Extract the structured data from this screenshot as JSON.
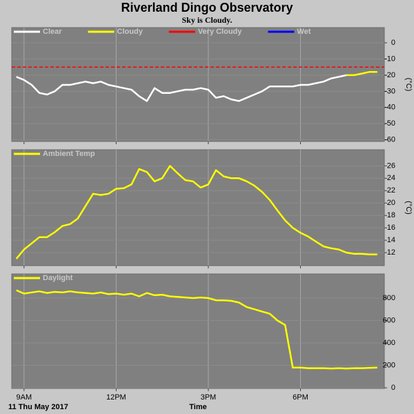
{
  "header": {
    "title": "Riverland Dingo Observatory",
    "subtitle": "Sky is Cloudy."
  },
  "chart_data": [
    {
      "type": "line",
      "unit": "(°C)",
      "x": [
        8.75,
        9,
        9.25,
        9.5,
        9.75,
        10,
        10.25,
        10.5,
        10.75,
        11,
        11.25,
        11.5,
        11.75,
        12,
        12.25,
        12.5,
        12.75,
        13,
        13.25,
        13.5,
        13.75,
        14,
        14.25,
        14.5,
        14.75,
        15,
        15.25,
        15.5,
        15.75,
        16,
        16.25,
        16.5,
        16.75,
        17,
        17.25,
        17.5,
        17.75,
        18,
        18.25,
        18.5,
        18.75,
        19,
        19.25,
        19.5,
        19.75,
        20,
        20.25,
        20.5
      ],
      "series": [
        {
          "name": "Clear",
          "color": "#ffffff",
          "values": [
            -21,
            -23,
            -26,
            -31,
            -32,
            -30,
            -26,
            -26,
            -25,
            -24,
            -25,
            -24,
            -26,
            -27,
            -28,
            -29,
            -33,
            -36,
            -28,
            -31,
            -31,
            -30,
            -29,
            -29,
            -28,
            -29,
            -34,
            -33,
            -35,
            -36,
            -34,
            -32,
            -30,
            -27,
            -27,
            -27,
            -27,
            -26,
            -26,
            -25,
            -24,
            -22,
            -21,
            -20,
            null,
            null,
            null,
            null
          ]
        },
        {
          "name": "Cloudy",
          "color": "#ffff00",
          "values": [
            null,
            null,
            null,
            null,
            null,
            null,
            null,
            null,
            null,
            null,
            null,
            null,
            null,
            null,
            null,
            null,
            null,
            null,
            null,
            null,
            null,
            null,
            null,
            null,
            null,
            null,
            null,
            null,
            null,
            null,
            null,
            null,
            null,
            null,
            null,
            null,
            null,
            null,
            null,
            null,
            null,
            null,
            null,
            -20,
            -20,
            -19,
            -18,
            -18
          ]
        },
        {
          "name": "Very Cloudy",
          "color": "#ff0000",
          "dash": true,
          "x": [
            8.6,
            20.73
          ],
          "values": [
            -15,
            -15
          ]
        },
        {
          "name": "Wet",
          "color": "#0000ff",
          "x": [],
          "values": []
        }
      ],
      "xlim": [
        8.6,
        20.73
      ],
      "xticks": [
        9,
        12,
        15,
        18
      ],
      "ylim": [
        -61,
        9.4
      ],
      "yticks": [
        0,
        -10,
        -20,
        -30,
        -40,
        -50,
        -60
      ],
      "grid": true
    },
    {
      "type": "line",
      "unit": "(°C)",
      "x": [
        8.75,
        9,
        9.25,
        9.5,
        9.75,
        10,
        10.25,
        10.5,
        10.75,
        11,
        11.25,
        11.5,
        11.75,
        12,
        12.25,
        12.5,
        12.75,
        13,
        13.25,
        13.5,
        13.75,
        14,
        14.25,
        14.5,
        14.75,
        15,
        15.25,
        15.5,
        15.75,
        16,
        16.25,
        16.5,
        16.75,
        17,
        17.25,
        17.5,
        17.75,
        18,
        18.25,
        18.5,
        18.75,
        19,
        19.25,
        19.5,
        19.75,
        20,
        20.25,
        20.5
      ],
      "series": [
        {
          "name": "Ambient Temp",
          "color": "#ffff00",
          "values": [
            11,
            12.5,
            13.5,
            14.5,
            14.5,
            15.3,
            16.3,
            16.6,
            17.5,
            19.5,
            21.5,
            21.3,
            21.5,
            22.3,
            22.4,
            23,
            25.5,
            25,
            23.5,
            24,
            26,
            24.8,
            23.7,
            23.5,
            22.5,
            23,
            25.3,
            24.3,
            24,
            24,
            23.5,
            22.8,
            21.8,
            20.5,
            18.8,
            17.2,
            16,
            15.2,
            14.6,
            13.8,
            13,
            12.7,
            12.5,
            12,
            11.8,
            11.8,
            11.7,
            11.7
          ]
        }
      ],
      "xlim": [
        8.6,
        20.73
      ],
      "xticks": [
        9,
        12,
        15,
        18
      ],
      "ylim": [
        9.9,
        28.6
      ],
      "yticks": [
        26,
        24,
        22,
        20,
        18,
        16,
        14,
        12
      ],
      "grid": true
    },
    {
      "type": "line",
      "x_label": "Time",
      "annotation": "11 Thu May 2017",
      "x": [
        8.75,
        9,
        9.25,
        9.5,
        9.75,
        10,
        10.25,
        10.5,
        10.75,
        11,
        11.25,
        11.5,
        11.75,
        12,
        12.25,
        12.5,
        12.75,
        13,
        13.25,
        13.5,
        13.75,
        14,
        14.25,
        14.5,
        14.75,
        15,
        15.25,
        15.5,
        15.75,
        16,
        16.25,
        16.5,
        16.75,
        17,
        17.25,
        17.5,
        17.75,
        18,
        18.25,
        18.5,
        18.75,
        19,
        19.25,
        19.5,
        19.75,
        20,
        20.25,
        20.5
      ],
      "series": [
        {
          "name": "Daylight",
          "color": "#ffff00",
          "values": [
            870,
            840,
            850,
            860,
            845,
            855,
            850,
            860,
            850,
            845,
            840,
            850,
            835,
            840,
            830,
            840,
            815,
            845,
            825,
            830,
            815,
            810,
            805,
            800,
            805,
            800,
            780,
            780,
            775,
            760,
            720,
            700,
            680,
            660,
            600,
            560,
            180,
            180,
            175,
            175,
            175,
            172,
            175,
            172,
            175,
            175,
            178,
            180
          ]
        }
      ],
      "xlim": [
        8.6,
        20.73
      ],
      "xticks": [
        {
          "value": 9,
          "label": "9AM"
        },
        {
          "value": 12,
          "label": "12PM"
        },
        {
          "value": 15,
          "label": "3PM"
        },
        {
          "value": 18,
          "label": "6PM"
        }
      ],
      "ylim": [
        -6,
        1015
      ],
      "yticks": [
        800,
        600,
        400,
        200,
        0
      ],
      "grid": true
    }
  ]
}
